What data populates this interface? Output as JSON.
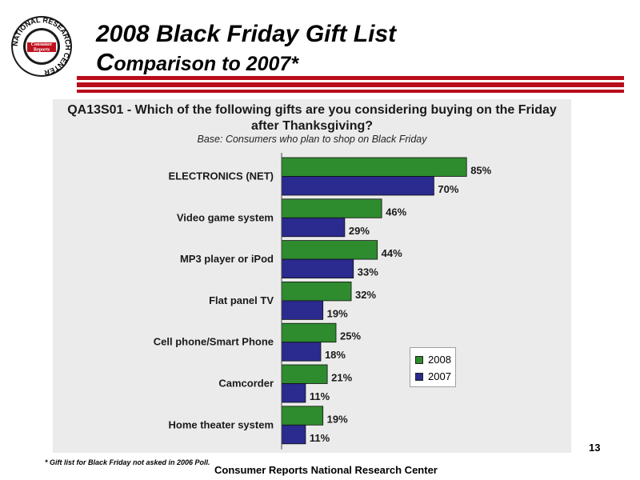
{
  "logo": {
    "ring_text": "NATIONAL RESEARCH CENTER",
    "center_text_1": "Consumer",
    "center_text_2": "Reports"
  },
  "header": {
    "title": "2008 Black Friday Gift List",
    "subtitle_initial": "C",
    "subtitle_rest": "omparison to 2007*"
  },
  "colors": {
    "accent_red": "#b80d1c",
    "series_2008": "#2e8b2e",
    "series_2007": "#2a2a8f"
  },
  "chart_data": {
    "type": "bar",
    "orientation": "horizontal",
    "title": "QA13S01 - Which of the following gifts are you considering buying on the Friday after Thanksgiving?",
    "subtitle": "Base: Consumers who plan to shop on Black Friday",
    "categories": [
      "ELECTRONICS (NET)",
      "Video game system",
      "MP3 player or iPod",
      "Flat panel TV",
      "Cell phone/Smart Phone",
      "Camcorder",
      "Home theater system"
    ],
    "series": [
      {
        "name": "2008",
        "values": [
          85,
          46,
          44,
          32,
          25,
          21,
          19
        ],
        "labels": [
          "85%",
          "46%",
          "44%",
          "32%",
          "25%",
          "21%",
          "19%"
        ],
        "color": "#2e8b2e"
      },
      {
        "name": "2007",
        "values": [
          70,
          29,
          33,
          19,
          18,
          11,
          11
        ],
        "labels": [
          "70%",
          "29%",
          "33%",
          "19%",
          "18%",
          "11%",
          "11%"
        ],
        "color": "#2a2a8f"
      }
    ],
    "xlim": [
      0,
      100
    ],
    "grid": false,
    "legend_position": "bottom-right"
  },
  "legend": {
    "items": [
      "2008",
      "2007"
    ]
  },
  "page_number": "13",
  "footnote": "* Gift list for Black Friday not asked in 2006 Poll.",
  "footer": "Consumer Reports National Research Center"
}
